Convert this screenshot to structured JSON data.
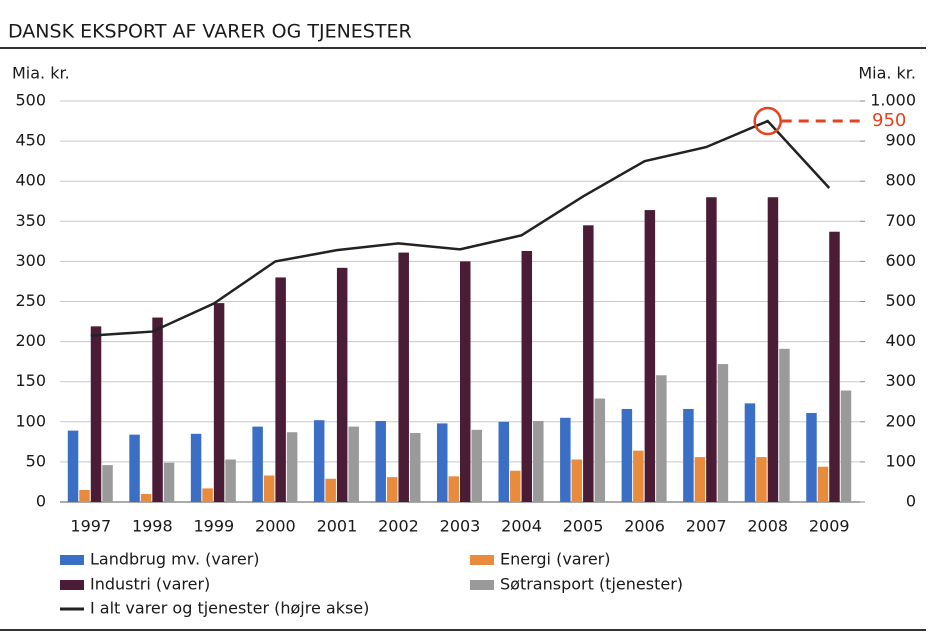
{
  "chart_data": {
    "type": "bar",
    "title": "DANSK EKSPORT AF VARER OG TJENESTER",
    "y_label": "Mia. kr.",
    "y2_label": "Mia. kr.",
    "categories": [
      "1997",
      "1998",
      "1999",
      "2000",
      "2001",
      "2002",
      "2003",
      "2004",
      "2005",
      "2006",
      "2007",
      "2008",
      "2009"
    ],
    "series": [
      {
        "name": "Landbrug mv. (varer)",
        "color": "#3b6fc6",
        "values": [
          89,
          84,
          85,
          94,
          102,
          101,
          98,
          100,
          105,
          116,
          116,
          123,
          111
        ]
      },
      {
        "name": "Energi (varer)",
        "color": "#e98b3c",
        "values": [
          15,
          10,
          17,
          33,
          29,
          31,
          32,
          39,
          53,
          64,
          56,
          56,
          44
        ]
      },
      {
        "name": "Industri (varer)",
        "color": "#4b1c36",
        "values": [
          219,
          230,
          248,
          280,
          292,
          311,
          300,
          313,
          345,
          364,
          380,
          380,
          337
        ]
      },
      {
        "name": "Søtransport (tjenester)",
        "color": "#9a9a9a",
        "values": [
          46,
          49,
          53,
          87,
          94,
          86,
          90,
          101,
          129,
          158,
          172,
          191,
          139
        ]
      },
      {
        "name": "I alt varer og tjenester (højre akse)",
        "color": "#222222",
        "type": "line",
        "axis": "y2",
        "values": [
          415,
          425,
          495,
          600,
          628,
          645,
          630,
          665,
          762,
          850,
          885,
          950,
          783
        ]
      }
    ],
    "ylim": [
      0,
      500
    ],
    "yticks": [
      0,
      50,
      100,
      150,
      200,
      250,
      300,
      350,
      400,
      450,
      500
    ],
    "y2lim": [
      0,
      1000
    ],
    "y2ticks": [
      0,
      100,
      200,
      300,
      400,
      500,
      600,
      700,
      800,
      900,
      {
        "value": 1000,
        "label": "1.000"
      }
    ],
    "annotation": {
      "label": "950",
      "value": 950,
      "category_index": 11,
      "color": "#e8421c"
    },
    "grid": true
  }
}
